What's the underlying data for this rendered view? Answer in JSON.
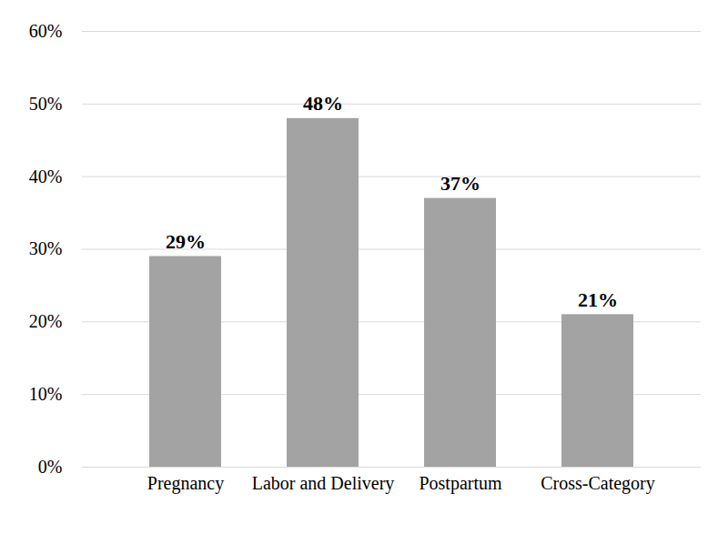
{
  "chart_data": {
    "type": "bar",
    "categories": [
      "Pregnancy",
      "Labor and Delivery",
      "Postpartum",
      "Cross-Category"
    ],
    "values": [
      29,
      48,
      37,
      21
    ],
    "value_labels": [
      "29%",
      "48%",
      "37%",
      "21%"
    ],
    "color": "#a3a3a3",
    "ylim": [
      0,
      60
    ],
    "yticks": [
      {
        "value": 0,
        "label": "0%"
      },
      {
        "value": 10,
        "label": "10%"
      },
      {
        "value": 20,
        "label": "20%"
      },
      {
        "value": 30,
        "label": "30%"
      },
      {
        "value": 40,
        "label": "40%"
      },
      {
        "value": 50,
        "label": "50%"
      },
      {
        "value": 60,
        "label": "60%"
      }
    ],
    "grid": true,
    "data_labels": true
  }
}
